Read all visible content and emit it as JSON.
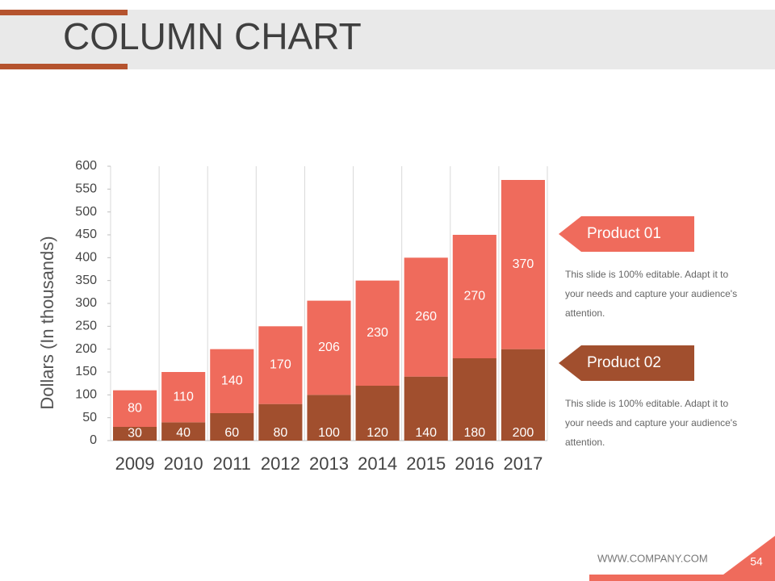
{
  "chart_data": {
    "type": "stacked_bar",
    "title": "COLUMN CHART",
    "y_label": "Dollars (In thousands)",
    "categories": [
      "2009",
      "2010",
      "2011",
      "2012",
      "2013",
      "2014",
      "2015",
      "2016",
      "2017"
    ],
    "series": [
      {
        "name": "Product 02",
        "color": "#a14f2e",
        "values": [
          30,
          40,
          60,
          80,
          100,
          120,
          140,
          180,
          200
        ]
      },
      {
        "name": "Product 01",
        "color": "#ef6b5c",
        "values": [
          80,
          110,
          140,
          170,
          206,
          230,
          260,
          270,
          370
        ]
      }
    ],
    "ylim": [
      0,
      600
    ],
    "yticks": [
      0,
      50,
      100,
      150,
      200,
      250,
      300,
      350,
      400,
      450,
      500,
      550,
      600
    ]
  },
  "legend_notes": [
    "This slide is 100% editable. Adapt it to your needs and capture your audience's attention.",
    "This slide is 100% editable. Adapt it to your needs and capture your audience's attention."
  ],
  "footer": {
    "website": "WWW.COMPANY.COM",
    "page_number": "54"
  }
}
